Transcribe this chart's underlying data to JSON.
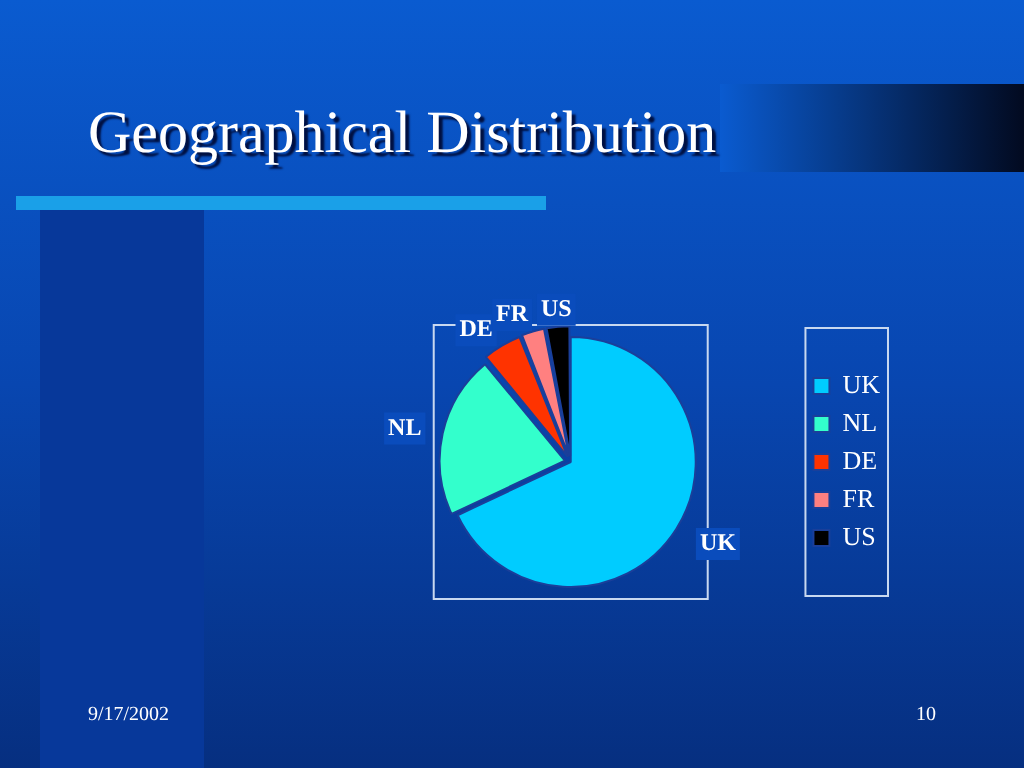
{
  "chart_data": {
    "type": "pie",
    "title": "Geographical Distribution",
    "categories": [
      "UK",
      "NL",
      "DE",
      "FR",
      "US"
    ],
    "values": [
      68,
      21,
      5,
      3,
      3
    ],
    "colors": [
      "#00ccff",
      "#33ffcc",
      "#ff3300",
      "#ff8080",
      "#000000"
    ],
    "legend": "right",
    "annotations": [
      "9/17/2002",
      "10"
    ]
  }
}
